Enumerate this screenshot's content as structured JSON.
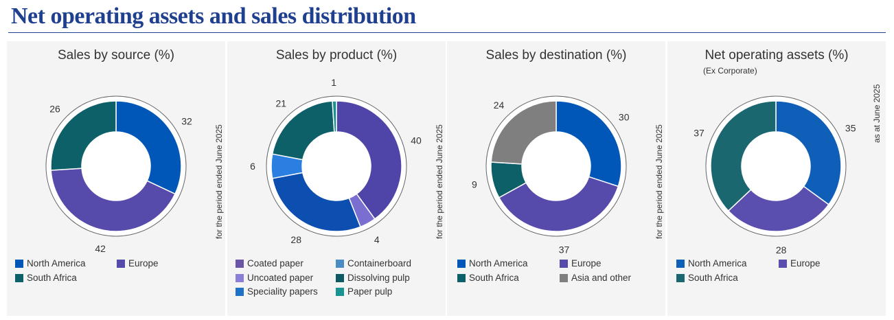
{
  "page_title": "Net operating assets and sales distribution",
  "colors": {
    "title": "#1f3f8f",
    "north_america": "#0057b7",
    "europe": "#564aab",
    "south_africa": "#0e6068",
    "asia_other": "#7f7f7f",
    "coated": "#4f45a8",
    "uncoated": "#7a6fd0",
    "speciality": "#1f78d6",
    "containerboard": "#0d4fb0",
    "dissolving": "#0e6068",
    "paper_pulp": "#17928f"
  },
  "panels": [
    {
      "title": "Sales by source (%)",
      "subtitle": "",
      "side_note": "for the period ended June 2025",
      "legend": [
        {
          "label": "North America",
          "color": "#0057b7"
        },
        {
          "label": "Europe",
          "color": "#564aab"
        },
        {
          "label": "South Africa",
          "color": "#0e6068"
        }
      ]
    },
    {
      "title": "Sales by product (%)",
      "subtitle": "",
      "side_note": "for the period ended June 2025",
      "legend": [
        {
          "label": "Coated paper",
          "color": "#6a55a8"
        },
        {
          "label": "Containerboard",
          "color": "#4a8bc4"
        },
        {
          "label": "Uncoated paper",
          "color": "#8a7fd6"
        },
        {
          "label": "Dissolving pulp",
          "color": "#0e5a62"
        },
        {
          "label": "Speciality papers",
          "color": "#1d72c8"
        },
        {
          "label": "Paper pulp",
          "color": "#179492"
        }
      ]
    },
    {
      "title": "Sales by destination (%)",
      "subtitle": "",
      "side_note": "for the period ended June 2025",
      "legend": [
        {
          "label": "North America",
          "color": "#0057b7"
        },
        {
          "label": "Europe",
          "color": "#564aab"
        },
        {
          "label": "South Africa",
          "color": "#0e6068"
        },
        {
          "label": "Asia and other",
          "color": "#7f7f7f"
        }
      ]
    },
    {
      "title": "Net operating assets (%)",
      "subtitle": "(Ex Corporate)",
      "side_note": "as at June 2025",
      "legend": [
        {
          "label": "North America",
          "color": "#0f5fb8"
        },
        {
          "label": "Europe",
          "color": "#5a4fae"
        },
        {
          "label": "South Africa",
          "color": "#1a6770"
        }
      ]
    }
  ],
  "chart_data": [
    {
      "type": "pie",
      "title": "Sales by source (%)",
      "categories": [
        "North America",
        "Europe",
        "South Africa"
      ],
      "values": [
        32,
        42,
        26
      ],
      "colors": [
        "#0057b7",
        "#564aab",
        "#0e6068"
      ],
      "donut": true
    },
    {
      "type": "pie",
      "title": "Sales by product (%)",
      "categories": [
        "Coated paper",
        "Uncoated paper",
        "Containerboard",
        "Speciality papers",
        "Dissolving pulp",
        "Paper pulp"
      ],
      "values": [
        40,
        4,
        28,
        6,
        21,
        1
      ],
      "colors": [
        "#4f45a8",
        "#7a6fd0",
        "#0d4fb0",
        "#2a7fe0",
        "#0e6068",
        "#17928f"
      ],
      "donut": true
    },
    {
      "type": "pie",
      "title": "Sales by destination (%)",
      "categories": [
        "North America",
        "Europe",
        "South Africa",
        "Asia and other"
      ],
      "values": [
        30,
        37,
        9,
        24
      ],
      "colors": [
        "#0057b7",
        "#564aab",
        "#0e6068",
        "#7f7f7f"
      ],
      "donut": true
    },
    {
      "type": "pie",
      "title": "Net operating assets (%)",
      "subtitle": "(Ex Corporate)",
      "categories": [
        "North America",
        "Europe",
        "South Africa"
      ],
      "values": [
        35,
        28,
        37
      ],
      "colors": [
        "#0f5fb8",
        "#5a4fae",
        "#1a6770"
      ],
      "donut": true
    }
  ]
}
